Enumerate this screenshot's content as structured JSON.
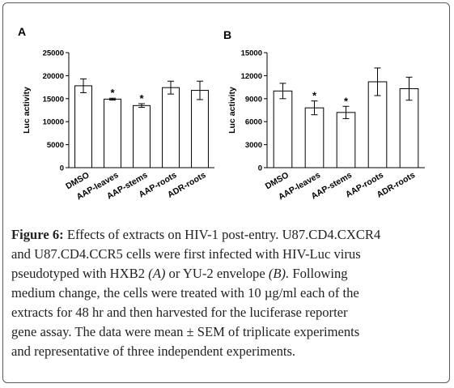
{
  "chart_data": [
    {
      "panel": "A",
      "type": "bar",
      "ylabel": "Luc activity",
      "ylim": [
        0,
        25000
      ],
      "yticks": [
        "0",
        "5000",
        "10000",
        "15000",
        "20000",
        "25000"
      ],
      "categories": [
        "DMSO",
        "AAP-leaves",
        "AAP-stems",
        "AAP-roots",
        "ADR-roots"
      ],
      "values": [
        17800,
        14900,
        13500,
        17400,
        16800
      ],
      "errors": [
        1500,
        200,
        400,
        1400,
        2000
      ],
      "significance": [
        "",
        "*",
        "*",
        "",
        ""
      ],
      "grid": false,
      "legend": "none"
    },
    {
      "panel": "B",
      "type": "bar",
      "ylabel": "Luc activity",
      "ylim": [
        0,
        15000
      ],
      "yticks": [
        "0",
        "3000",
        "6000",
        "9000",
        "12000",
        "15000"
      ],
      "categories": [
        "DMSO",
        "AAP-leaves",
        "AAP-stems",
        "AAP-roots",
        "ADR-roots"
      ],
      "values": [
        10000,
        7800,
        7200,
        11200,
        10300
      ],
      "errors": [
        1000,
        900,
        800,
        1800,
        1500
      ],
      "significance": [
        "",
        "*",
        "*",
        "",
        ""
      ],
      "grid": false,
      "legend": "none"
    }
  ],
  "caption": {
    "figure_label": "Figure 6:",
    "line1": "Effects of extracts on HIV-1 post-entry. U87.CD4.CXCR4",
    "line2": "and U87.CD4.CCR5 cells were first infected with HIV-Luc virus",
    "line3_before": "pseudotyped with HXB2",
    "line3_a": "(A)",
    "line3_mid": "or YU-2 envelope",
    "line3_b": "(B).",
    "line3_after": "Following",
    "line4": "medium change, the cells were treated with 10 µg/ml each of the",
    "line5": "extracts for 48 hr and then harvested for the luciferase reporter",
    "line6": "gene assay. The data were mean ± SEM of triplicate experiments",
    "line7": "and representative of three independent experiments."
  }
}
